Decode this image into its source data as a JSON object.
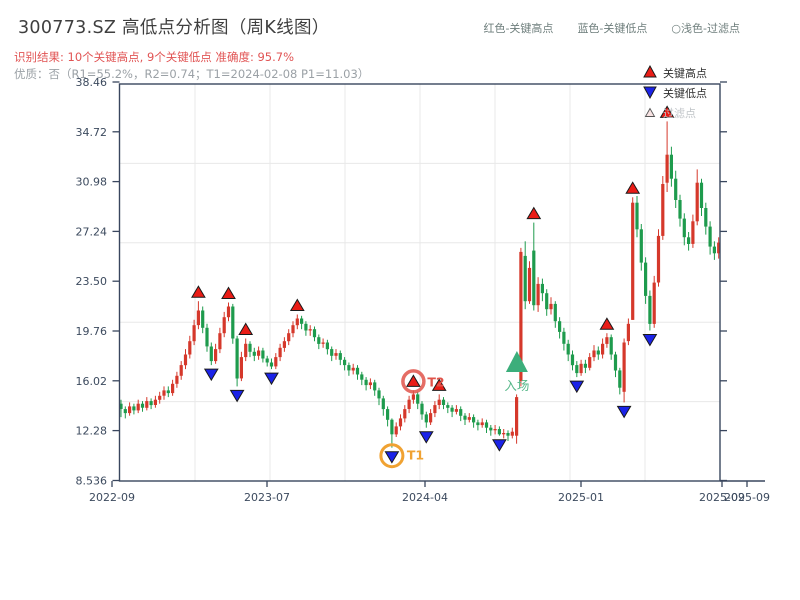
{
  "header": {
    "title": "300773.SZ 高低点分析图（周K线图）",
    "subtitle": "识别结果: 10个关键高点, 9个关键低点  准确度: 95.7%",
    "quality_line": "优质：否（R1=55.2%，R2=0.74；T1=2024-02-08 P1=11.03）"
  },
  "top_legend": {
    "high": "红色-关键高点",
    "low": "蓝色-关键低点",
    "filter": "○浅色-过滤点"
  },
  "legend_box": {
    "items": [
      {
        "icon": "red-up-triangle-icon",
        "label": "关键高点"
      },
      {
        "icon": "blue-down-triangle-icon",
        "label": "关键低点"
      },
      {
        "icon": "hollow-triangle-icon",
        "label": "过滤点"
      }
    ]
  },
  "annotations": {
    "t1": "T1",
    "t2": "T2",
    "entry": "入场"
  },
  "colors": {
    "up": "#d5382b",
    "down": "#1e9b4d",
    "key_high": "#ea1c16",
    "key_low": "#1b23e8",
    "marker_stroke": "#1a1a1a",
    "entry": "#3cae7b",
    "entry_text": "#57b88a",
    "t1": "#f0a232",
    "t2": "#e0534a",
    "grid": "#e8e8e8",
    "axis": "#39465e",
    "tick_text": "#3c4a5e",
    "legend_text": "#2f2f2f",
    "filter_text": "#c0c4c8",
    "filter_fill": "#f8e3e3"
  },
  "chart_data": {
    "type": "candlestick",
    "title": "300773.SZ 高低点分析图（周K线图）",
    "frequency": "weekly",
    "ylim": [
      8.536,
      38.46
    ],
    "y_ticks": [
      {
        "v": 8.536,
        "label": "8.536"
      },
      {
        "v": 12.28,
        "label": "12.28"
      },
      {
        "v": 16.02,
        "label": "16.02"
      },
      {
        "v": 19.76,
        "label": "19.76"
      },
      {
        "v": 23.5,
        "label": "23.50"
      },
      {
        "v": 27.24,
        "label": "27.24"
      },
      {
        "v": 30.98,
        "label": "30.98"
      },
      {
        "v": 34.72,
        "label": "34.72"
      },
      {
        "v": 38.46,
        "label": "38.46"
      }
    ],
    "x_tick_labels": [
      "2022-09",
      "2023-07",
      "2024-04",
      "2025-01",
      "2025-09",
      "2025-09"
    ],
    "candles_format": [
      "open",
      "close",
      "low",
      "high"
    ],
    "candles": [
      [
        14.3,
        13.9,
        13.3,
        14.6
      ],
      [
        13.9,
        13.6,
        13.2,
        14.1
      ],
      [
        13.6,
        14.1,
        13.4,
        14.4
      ],
      [
        14.1,
        13.8,
        13.5,
        14.3
      ],
      [
        13.8,
        14.3,
        13.6,
        14.6
      ],
      [
        14.3,
        14.0,
        13.7,
        14.5
      ],
      [
        14.0,
        14.5,
        13.8,
        14.8
      ],
      [
        14.5,
        14.2,
        13.9,
        14.7
      ],
      [
        14.2,
        14.6,
        14.0,
        14.9
      ],
      [
        14.6,
        14.9,
        14.3,
        15.2
      ],
      [
        14.9,
        15.3,
        14.6,
        15.6
      ],
      [
        15.3,
        15.1,
        14.8,
        15.6
      ],
      [
        15.1,
        15.8,
        14.9,
        16.1
      ],
      [
        15.8,
        16.4,
        15.5,
        16.7
      ],
      [
        16.4,
        17.2,
        16.1,
        17.5
      ],
      [
        17.2,
        18.0,
        16.9,
        18.4
      ],
      [
        18.0,
        19.0,
        17.7,
        19.4
      ],
      [
        19.0,
        20.2,
        18.7,
        20.6
      ],
      [
        20.2,
        21.3,
        19.9,
        22.0
      ],
      [
        21.3,
        20.0,
        19.6,
        21.6
      ],
      [
        20.0,
        18.6,
        18.2,
        20.3
      ],
      [
        18.6,
        17.5,
        17.2,
        18.9
      ],
      [
        17.5,
        18.4,
        17.3,
        18.8
      ],
      [
        18.4,
        19.6,
        18.1,
        20.0
      ],
      [
        19.6,
        20.8,
        19.3,
        21.2
      ],
      [
        20.8,
        21.6,
        20.5,
        21.9
      ],
      [
        21.6,
        19.2,
        18.8,
        21.8
      ],
      [
        19.2,
        16.2,
        15.6,
        19.4
      ],
      [
        16.2,
        17.8,
        16.0,
        18.2
      ],
      [
        17.8,
        18.8,
        17.5,
        19.2
      ],
      [
        18.8,
        18.2,
        17.8,
        19.0
      ],
      [
        18.2,
        17.9,
        17.5,
        18.5
      ],
      [
        17.9,
        18.3,
        17.6,
        18.6
      ],
      [
        18.3,
        17.7,
        17.4,
        18.5
      ],
      [
        17.7,
        17.4,
        17.1,
        17.9
      ],
      [
        17.4,
        17.1,
        16.9,
        17.7
      ],
      [
        17.1,
        17.8,
        16.9,
        18.1
      ],
      [
        17.8,
        18.5,
        17.5,
        18.8
      ],
      [
        18.5,
        19.0,
        18.2,
        19.3
      ],
      [
        19.0,
        19.6,
        18.7,
        19.9
      ],
      [
        19.6,
        20.2,
        19.3,
        20.5
      ],
      [
        20.2,
        20.7,
        19.9,
        21.0
      ],
      [
        20.7,
        20.3,
        19.9,
        20.9
      ],
      [
        20.3,
        19.8,
        19.4,
        20.5
      ],
      [
        19.8,
        19.9,
        19.4,
        20.2
      ],
      [
        19.9,
        19.3,
        19.0,
        20.1
      ],
      [
        19.3,
        18.8,
        18.4,
        19.5
      ],
      [
        18.8,
        18.9,
        18.5,
        19.2
      ],
      [
        18.9,
        18.4,
        18.0,
        19.1
      ],
      [
        18.4,
        17.9,
        17.5,
        18.6
      ],
      [
        17.9,
        18.1,
        17.6,
        18.4
      ],
      [
        18.1,
        17.6,
        17.2,
        18.3
      ],
      [
        17.6,
        17.2,
        16.8,
        17.8
      ],
      [
        17.2,
        16.8,
        16.4,
        17.4
      ],
      [
        16.8,
        17.0,
        16.5,
        17.3
      ],
      [
        17.0,
        16.5,
        16.1,
        17.2
      ],
      [
        16.5,
        16.1,
        15.7,
        16.7
      ],
      [
        16.1,
        15.7,
        15.3,
        16.3
      ],
      [
        15.7,
        15.9,
        15.4,
        16.2
      ],
      [
        15.9,
        15.3,
        14.9,
        16.1
      ],
      [
        15.3,
        14.7,
        14.2,
        15.5
      ],
      [
        14.7,
        13.9,
        13.4,
        14.9
      ],
      [
        13.9,
        13.1,
        12.6,
        14.1
      ],
      [
        13.1,
        12.0,
        11.0,
        13.2
      ],
      [
        12.0,
        12.6,
        11.8,
        12.9
      ],
      [
        12.6,
        13.2,
        12.3,
        13.5
      ],
      [
        13.2,
        13.9,
        12.9,
        14.2
      ],
      [
        13.9,
        14.6,
        13.6,
        14.9
      ],
      [
        14.6,
        15.0,
        14.3,
        15.3
      ],
      [
        15.0,
        14.3,
        13.9,
        15.2
      ],
      [
        14.3,
        13.5,
        13.1,
        14.5
      ],
      [
        13.5,
        12.9,
        12.5,
        13.7
      ],
      [
        12.9,
        13.6,
        12.7,
        13.9
      ],
      [
        13.6,
        14.2,
        13.3,
        14.5
      ],
      [
        14.2,
        14.6,
        13.9,
        15.0
      ],
      [
        14.6,
        14.2,
        13.9,
        14.8
      ],
      [
        14.2,
        14.0,
        13.6,
        14.4
      ],
      [
        14.0,
        13.7,
        13.3,
        14.2
      ],
      [
        13.7,
        13.9,
        13.5,
        14.2
      ],
      [
        13.9,
        13.4,
        13.0,
        14.1
      ],
      [
        13.4,
        13.1,
        12.7,
        13.6
      ],
      [
        13.1,
        13.3,
        12.9,
        13.6
      ],
      [
        13.3,
        12.9,
        12.5,
        13.5
      ],
      [
        12.9,
        12.7,
        12.3,
        13.1
      ],
      [
        12.7,
        12.9,
        12.5,
        13.2
      ],
      [
        12.9,
        12.5,
        12.1,
        13.1
      ],
      [
        12.5,
        12.3,
        11.9,
        12.7
      ],
      [
        12.3,
        12.4,
        12.0,
        12.7
      ],
      [
        12.4,
        12.0,
        11.9,
        12.6
      ],
      [
        12.0,
        12.1,
        11.7,
        12.4
      ],
      [
        12.1,
        11.9,
        11.5,
        12.3
      ],
      [
        11.9,
        12.2,
        11.7,
        12.5
      ],
      [
        11.9,
        14.8,
        11.3,
        15.0
      ],
      [
        16.0,
        25.7,
        15.6,
        26.0
      ],
      [
        25.4,
        22.0,
        21.4,
        26.5
      ],
      [
        22.0,
        24.5,
        21.8,
        25.0
      ],
      [
        25.8,
        21.7,
        21.3,
        27.9
      ],
      [
        21.7,
        23.3,
        21.2,
        23.8
      ],
      [
        23.3,
        22.6,
        22.0,
        23.7
      ],
      [
        22.6,
        21.4,
        20.9,
        22.9
      ],
      [
        21.4,
        21.8,
        21.0,
        22.3
      ],
      [
        21.8,
        20.5,
        20.0,
        22.0
      ],
      [
        20.5,
        19.7,
        19.2,
        20.8
      ],
      [
        19.7,
        18.8,
        18.3,
        20.0
      ],
      [
        18.8,
        18.0,
        17.5,
        19.1
      ],
      [
        18.0,
        17.2,
        16.8,
        18.3
      ],
      [
        17.2,
        16.6,
        16.3,
        17.5
      ],
      [
        16.6,
        17.3,
        16.4,
        17.6
      ],
      [
        17.3,
        17.0,
        16.6,
        17.6
      ],
      [
        17.0,
        17.8,
        16.8,
        18.1
      ],
      [
        17.8,
        18.3,
        17.5,
        18.7
      ],
      [
        18.3,
        18.0,
        17.6,
        18.6
      ],
      [
        18.0,
        18.8,
        17.7,
        19.2
      ],
      [
        18.8,
        19.3,
        18.5,
        19.6
      ],
      [
        19.3,
        18.0,
        17.6,
        19.5
      ],
      [
        18.0,
        16.8,
        16.3,
        18.2
      ],
      [
        16.8,
        15.5,
        15.0,
        17.0
      ],
      [
        15.2,
        18.9,
        14.4,
        19.2
      ],
      [
        19.0,
        20.3,
        18.7,
        20.7
      ],
      [
        20.6,
        29.4,
        20.6,
        29.8
      ],
      [
        29.4,
        27.4,
        26.8,
        29.9
      ],
      [
        27.4,
        24.9,
        24.3,
        27.8
      ],
      [
        24.9,
        22.4,
        21.8,
        25.3
      ],
      [
        22.4,
        20.3,
        19.8,
        22.8
      ],
      [
        20.3,
        23.4,
        20.0,
        23.9
      ],
      [
        23.4,
        26.9,
        23.1,
        27.4
      ],
      [
        26.9,
        30.8,
        26.6,
        31.4
      ],
      [
        30.9,
        33.0,
        30.2,
        35.5
      ],
      [
        33.0,
        31.2,
        30.6,
        33.6
      ],
      [
        31.2,
        29.6,
        29.0,
        31.8
      ],
      [
        29.6,
        28.2,
        27.6,
        30.0
      ],
      [
        28.2,
        26.8,
        26.2,
        28.6
      ],
      [
        26.8,
        26.3,
        25.8,
        27.2
      ],
      [
        26.3,
        28.0,
        26.0,
        28.5
      ],
      [
        28.0,
        30.9,
        27.7,
        31.9
      ],
      [
        30.9,
        29.0,
        28.4,
        31.2
      ],
      [
        29.0,
        27.6,
        27.0,
        29.4
      ],
      [
        27.6,
        26.1,
        25.5,
        28.0
      ],
      [
        26.1,
        25.6,
        25.1,
        26.5
      ],
      [
        25.6,
        26.4,
        25.2,
        26.8
      ]
    ],
    "key_highs": [
      {
        "i": 18,
        "price": 22.0
      },
      {
        "i": 25,
        "price": 21.9
      },
      {
        "i": 29,
        "price": 19.2
      },
      {
        "i": 41,
        "price": 21.0
      },
      {
        "i": 68,
        "price": 15.3
      },
      {
        "i": 74,
        "price": 15.0
      },
      {
        "i": 96,
        "price": 27.9
      },
      {
        "i": 113,
        "price": 19.6
      },
      {
        "i": 119,
        "price": 29.8
      },
      {
        "i": 127,
        "price": 35.5
      }
    ],
    "key_lows": [
      {
        "i": 21,
        "price": 17.2
      },
      {
        "i": 27,
        "price": 15.6
      },
      {
        "i": 35,
        "price": 16.9
      },
      {
        "i": 63,
        "price": 11.0
      },
      {
        "i": 71,
        "price": 12.5
      },
      {
        "i": 88,
        "price": 11.9
      },
      {
        "i": 106,
        "price": 16.3
      },
      {
        "i": 117,
        "price": 14.4
      },
      {
        "i": 123,
        "price": 19.8
      }
    ],
    "t1_index": 63,
    "t2_index": 68,
    "entry_index": 93,
    "legend_position": "top-right-inside",
    "grid": true
  }
}
